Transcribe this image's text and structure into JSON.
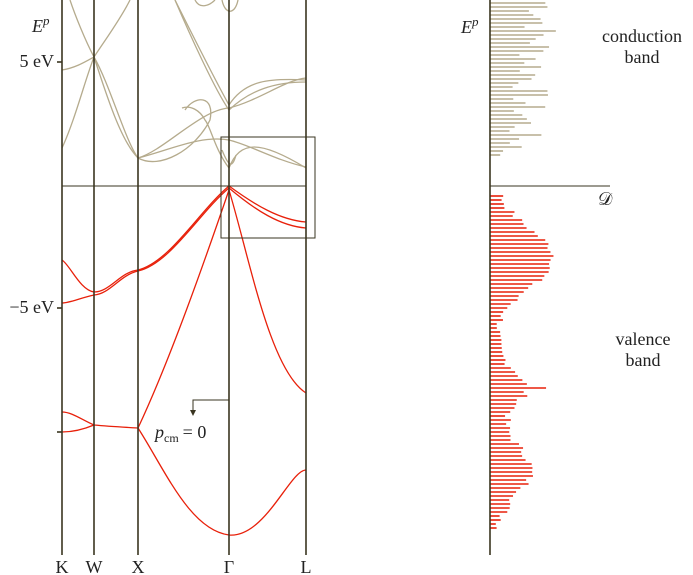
{
  "band_plot": {
    "y_label": "E",
    "y_label_sup": "p",
    "ticks": [
      "5 eV",
      "−5 eV"
    ],
    "k_points": [
      "K",
      "W",
      "X",
      "Γ",
      "L"
    ],
    "annotation": {
      "symbol": "p",
      "subscript": "cm",
      "rest": "= 0"
    }
  },
  "dos_plot": {
    "y_label": "E",
    "y_label_sup": "p",
    "x_label": "𝒟",
    "conduction_band": [
      "conduction",
      "band"
    ],
    "valence_band": [
      "valence",
      "band"
    ]
  }
}
